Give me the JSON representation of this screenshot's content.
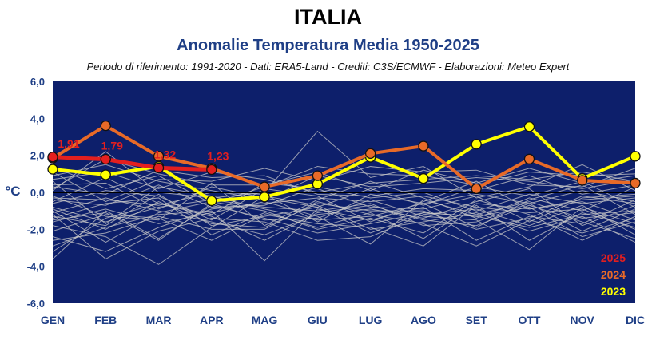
{
  "header": {
    "title": "ITALIA",
    "subtitle": "Anomalie Temperatura Media 1950-2025",
    "credits": "Periodo di riferimento: 1991-2020 - Dati: ERA5-Land - Crediti: C3S/ECMWF - Elaborazioni: Meteo Expert"
  },
  "chart_data": {
    "type": "line",
    "categories": [
      "GEN",
      "FEB",
      "MAR",
      "APR",
      "MAG",
      "GIU",
      "LUG",
      "AGO",
      "SET",
      "OTT",
      "NOV",
      "DIC"
    ],
    "ylabel": "°C",
    "ylim": [
      -6,
      6
    ],
    "yticks": [
      "6,0",
      "4,0",
      "2,0",
      "0,0",
      "-2,0",
      "-4,0",
      "-6,0"
    ],
    "background_color": "#0d1f6b",
    "zero_line": true,
    "series": [
      {
        "name": "2025",
        "color": "#e41f1f",
        "values": [
          1.91,
          1.79,
          1.32,
          1.23,
          null,
          null,
          null,
          null,
          null,
          null,
          null,
          null
        ],
        "labels": [
          "1,91",
          "1,79",
          "1,32",
          "1,23"
        ]
      },
      {
        "name": "2024",
        "color": "#e86a28",
        "values": [
          1.85,
          3.6,
          1.95,
          1.3,
          0.3,
          0.9,
          2.1,
          2.5,
          0.2,
          1.8,
          0.65,
          0.5
        ]
      },
      {
        "name": "2023",
        "color": "#ffff00",
        "values": [
          1.25,
          0.95,
          1.4,
          -0.45,
          -0.25,
          0.45,
          1.9,
          0.75,
          2.6,
          3.55,
          0.75,
          1.95
        ]
      }
    ],
    "background_series": {
      "color": "#c8c8c8",
      "description_values_approx": [
        [
          -2.4,
          -3.2,
          -1.9,
          -0.9,
          -0.6,
          -0.3,
          -0.5,
          -0.2,
          -0.8,
          -1.1,
          -0.9,
          -2.0
        ],
        [
          -1.1,
          -0.3,
          -1.0,
          -1.6,
          -2.3,
          -1.2,
          -0.9,
          -1.4,
          -0.5,
          0.2,
          -1.8,
          -0.7
        ],
        [
          0.6,
          -1.7,
          0.3,
          -0.2,
          -0.9,
          -1.5,
          -1.3,
          -0.6,
          -1.9,
          -0.4,
          0.4,
          -1.2
        ],
        [
          -0.5,
          0.8,
          -0.6,
          -1.2,
          0.5,
          0.2,
          -0.8,
          -0.9,
          -0.2,
          -1.6,
          -0.3,
          -0.1
        ],
        [
          -3.6,
          -1.0,
          -2.5,
          -0.7,
          -1.4,
          -2.2,
          -1.7,
          -1.1,
          -1.3,
          -0.8,
          -2.4,
          -1.6
        ],
        [
          0.9,
          1.5,
          0.6,
          0.1,
          -0.4,
          0.9,
          0.3,
          0.5,
          0.8,
          0.6,
          0.2,
          0.7
        ],
        [
          -1.8,
          -2.4,
          -3.9,
          -1.9,
          -0.2,
          -0.7,
          -2.0,
          -1.6,
          -1.1,
          -2.1,
          -1.3,
          -2.7
        ],
        [
          -0.2,
          -1.3,
          -1.5,
          0.5,
          -1.8,
          -0.4,
          0.6,
          -0.3,
          -1.4,
          -0.3,
          -1.0,
          0.3
        ],
        [
          1.4,
          0.2,
          0.9,
          -0.6,
          0.3,
          1.4,
          1.0,
          0.9,
          0.4,
          1.1,
          0.9,
          1.0
        ],
        [
          -1.4,
          -0.6,
          -0.3,
          -2.3,
          -1.1,
          -1.9,
          -1.1,
          -2.5,
          -0.6,
          -0.9,
          -0.5,
          -1.5
        ],
        [
          -2.9,
          -1.9,
          -1.2,
          -1.0,
          -3.7,
          -0.9,
          -1.5,
          -0.8,
          -2.6,
          -1.3,
          -1.7,
          -0.4
        ],
        [
          0.3,
          -0.1,
          1.2,
          0.8,
          0.9,
          -0.1,
          -0.2,
          0.2,
          0.1,
          0.9,
          -0.1,
          0.4
        ],
        [
          -0.8,
          -1.6,
          -0.8,
          -0.4,
          -0.8,
          -1.0,
          -0.6,
          -1.8,
          -1.6,
          -0.6,
          -2.1,
          -0.9
        ],
        [
          -1.2,
          -3.6,
          -2.1,
          -1.4,
          -1.6,
          -2.6,
          -2.4,
          -1.2,
          -0.9,
          -1.8,
          -0.7,
          -2.3
        ],
        [
          0.1,
          2.2,
          0.0,
          -0.3,
          0.0,
          3.3,
          0.8,
          1.4,
          -0.3,
          0.3,
          1.5,
          0.1
        ],
        [
          -1.6,
          -0.9,
          -1.7,
          -1.1,
          -0.5,
          -1.3,
          -2.8,
          -0.4,
          -1.2,
          -0.5,
          -1.4,
          -1.1
        ],
        [
          -0.9,
          -2.0,
          -0.5,
          -1.7,
          -1.9,
          -0.6,
          -1.0,
          -1.0,
          -2.0,
          -1.4,
          -0.2,
          -0.6
        ],
        [
          0.4,
          0.5,
          -0.9,
          0.3,
          -0.3,
          -0.8,
          0.2,
          -0.7,
          0.3,
          -0.2,
          0.6,
          -0.8
        ],
        [
          -2.1,
          -1.2,
          -1.4,
          -2.6,
          -1.2,
          -1.7,
          -1.9,
          -2.9,
          -0.7,
          -2.6,
          -1.1,
          -1.9
        ],
        [
          -0.4,
          -0.7,
          0.4,
          -0.8,
          -0.7,
          0.3,
          -0.3,
          0.0,
          -1.0,
          -0.1,
          -0.6,
          -0.3
        ],
        [
          -3.2,
          -1.4,
          -0.6,
          -1.3,
          -2.6,
          -1.1,
          -0.7,
          -1.5,
          -1.8,
          -0.7,
          -1.6,
          -2.5
        ],
        [
          1.1,
          -0.5,
          0.7,
          0.6,
          1.3,
          0.6,
          1.4,
          1.1,
          1.2,
          0.4,
          0.3,
          1.3
        ],
        [
          -1.0,
          -2.7,
          -1.1,
          -0.5,
          -1.0,
          -2.0,
          -1.4,
          -2.2,
          -0.4,
          -1.2,
          -2.6,
          -1.3
        ],
        [
          -0.6,
          0.1,
          -0.2,
          -1.5,
          0.2,
          -0.2,
          -1.6,
          -0.5,
          0.6,
          -0.9,
          -0.4,
          -0.2
        ],
        [
          -1.5,
          -1.1,
          -2.6,
          -0.6,
          -1.5,
          -1.4,
          -0.4,
          -1.3,
          -1.5,
          -3.1,
          -0.8,
          -1.7
        ],
        [
          0.7,
          1.1,
          0.2,
          1.1,
          0.7,
          0.0,
          0.5,
          0.7,
          0.9,
          0.7,
          1.1,
          0.6
        ],
        [
          -2.6,
          -2.2,
          -1.3,
          -2.0,
          -2.0,
          -0.5,
          -1.2,
          -1.7,
          -2.9,
          -1.5,
          -2.2,
          -1.4
        ],
        [
          -0.3,
          -0.4,
          -0.7,
          0.0,
          -0.1,
          -1.6,
          -0.1,
          -0.6,
          -0.1,
          -0.6,
          0.1,
          -0.5
        ],
        [
          -1.3,
          -1.8,
          -0.1,
          -1.8,
          -1.3,
          -0.8,
          -2.2,
          -1.1,
          -1.3,
          -1.9,
          -1.2,
          -1.0
        ],
        [
          0.2,
          1.8,
          1.0,
          0.4,
          0.4,
          1.1,
          0.1,
          1.2,
          0.5,
          1.3,
          0.5,
          0.9
        ]
      ]
    },
    "legend": {
      "position": "bottom-right",
      "entries": [
        "2025",
        "2024",
        "2023"
      ]
    }
  }
}
